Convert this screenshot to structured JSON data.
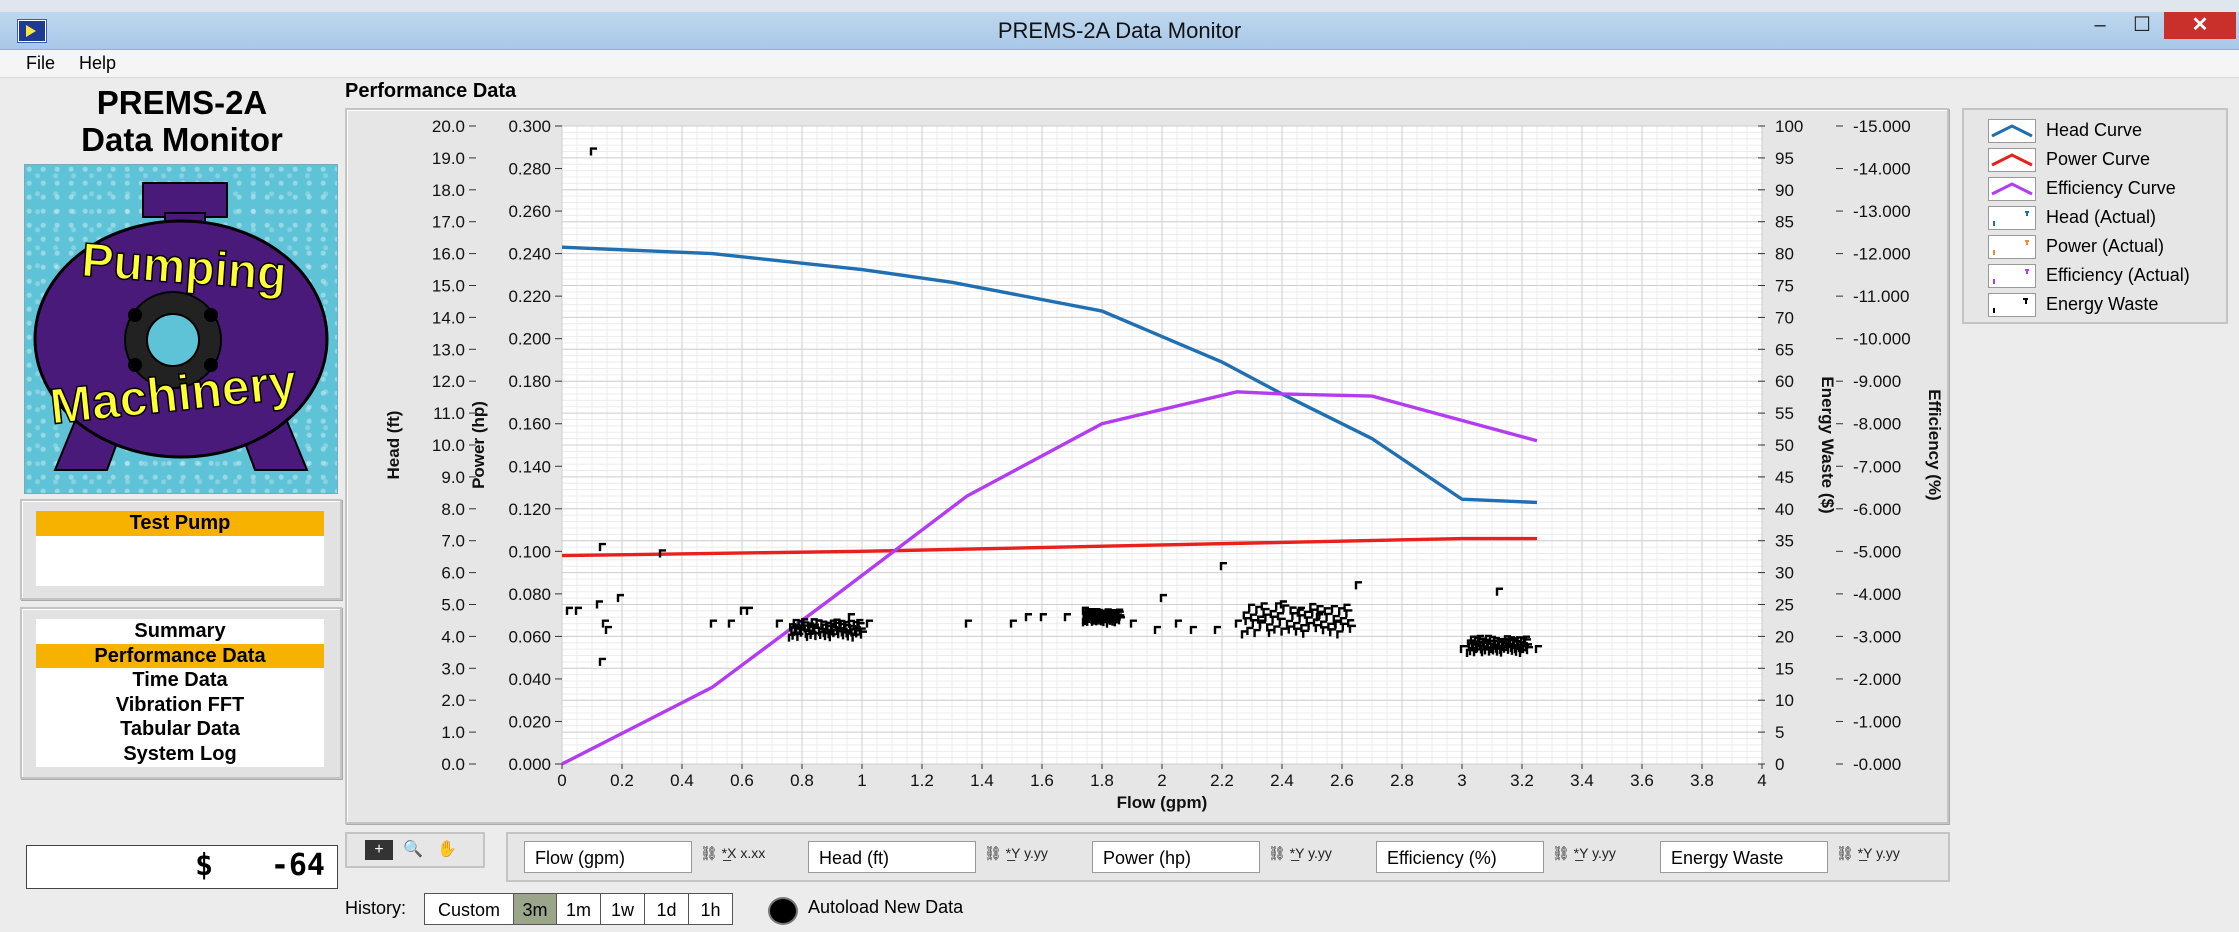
{
  "window": {
    "title": "PREMS-2A Data Monitor",
    "minimize": "–",
    "maximize": "☐",
    "close": "✕",
    "icon": "labview-run-icon"
  },
  "menu": [
    {
      "label": "File"
    },
    {
      "label": "Help"
    }
  ],
  "sidebar": {
    "app_name_line1": "PREMS-2A",
    "app_name_line2": "Data Monitor",
    "logo": {
      "line1": "Pumping",
      "line2": "Machinery",
      "colors": {
        "bg": "#5fc3d7",
        "body": "#4a1a7a",
        "text": "#ffff33"
      }
    },
    "pump_title": "Test Pump",
    "pump_name": "",
    "nav": [
      {
        "label": "Summary",
        "selected": false
      },
      {
        "label": "Performance Data",
        "selected": true
      },
      {
        "label": "Time Data",
        "selected": false
      },
      {
        "label": "Vibration FFT",
        "selected": false
      },
      {
        "label": "Tabular Data",
        "selected": false
      },
      {
        "label": "System Log",
        "selected": false
      }
    ],
    "energy_waste": {
      "currency": "$",
      "value": "-64"
    }
  },
  "main": {
    "title": "Performance Data",
    "axis_fields": [
      {
        "label": "Flow (gpm)",
        "controls": "⛓ *̲X x.xx"
      },
      {
        "label": "Head (ft)",
        "controls": "⛓ *̲Y y.yy"
      },
      {
        "label": "Power (hp)",
        "controls": "⛓ *̲Y y.yy"
      },
      {
        "label": "Efficiency (%)",
        "controls": "⛓ *̲Y y.yy"
      },
      {
        "label": "Energy Waste",
        "controls": "⛓ *̲Y y.yy"
      }
    ],
    "tools": {
      "cursor": "+",
      "zoom": "🔍",
      "pan": "✋"
    },
    "history_label": "History:",
    "history_buttons": [
      {
        "label": "Custom",
        "selected": false
      },
      {
        "label": "3m",
        "selected": true
      },
      {
        "label": "1m",
        "selected": false
      },
      {
        "label": "1w",
        "selected": false
      },
      {
        "label": "1d",
        "selected": false
      },
      {
        "label": "1h",
        "selected": false
      }
    ],
    "autoload_label": "Autoload New Data"
  },
  "chart_data": {
    "type": "line",
    "title": "",
    "xlabel": "Flow (gpm)",
    "xlim": [
      0,
      4
    ],
    "xticks": [
      "0",
      "0.2",
      "0.4",
      "0.6",
      "0.8",
      "1",
      "1.2",
      "1.4",
      "1.6",
      "1.8",
      "2",
      "2.2",
      "2.4",
      "2.6",
      "2.8",
      "3",
      "3.2",
      "3.4",
      "3.6",
      "3.8",
      "4"
    ],
    "grid": true,
    "axes": {
      "head": {
        "label": "Head (ft)",
        "lim": [
          0,
          20
        ],
        "ticks": [
          "0.0",
          "1.0",
          "2.0",
          "3.0",
          "4.0",
          "5.0",
          "6.0",
          "7.0",
          "8.0",
          "9.0",
          "10.0",
          "11.0",
          "12.0",
          "13.0",
          "14.0",
          "15.0",
          "16.0",
          "17.0",
          "18.0",
          "19.0",
          "20.0"
        ]
      },
      "power": {
        "label": "Power (hp)",
        "lim": [
          0,
          0.3
        ],
        "ticks": [
          "0.000",
          "0.020",
          "0.040",
          "0.060",
          "0.080",
          "0.100",
          "0.120",
          "0.140",
          "0.160",
          "0.180",
          "0.200",
          "0.220",
          "0.240",
          "0.260",
          "0.280",
          "0.300"
        ]
      },
      "waste": {
        "label": "Energy Waste ($)",
        "lim": [
          0,
          100
        ],
        "ticks": [
          "0",
          "5",
          "10",
          "15",
          "20",
          "25",
          "30",
          "35",
          "40",
          "45",
          "50",
          "55",
          "60",
          "65",
          "70",
          "75",
          "80",
          "85",
          "90",
          "95",
          "100"
        ]
      },
      "efficiency": {
        "label": "Efficiency (%)",
        "lim": [
          0,
          15
        ],
        "ticks": [
          "-0.000",
          "-1.000",
          "-2.000",
          "-3.000",
          "-4.000",
          "-5.000",
          "-6.000",
          "-7.000",
          "-8.000",
          "-9.000",
          "-10.000",
          "-11.000",
          "-12.000",
          "-13.000",
          "-14.000",
          "-15.000"
        ]
      }
    },
    "legend_position": "right",
    "series": [
      {
        "name": "Head Curve",
        "axis": "head",
        "color": "#1f6fb2",
        "x": [
          0,
          0.5,
          1,
          1.3,
          1.8,
          2,
          2.2,
          2.4,
          2.7,
          3,
          3.25
        ],
        "y": [
          16.2,
          16.0,
          15.5,
          15.1,
          14.2,
          13.4,
          12.6,
          11.6,
          10.2,
          8.3,
          8.2
        ]
      },
      {
        "name": "Power Curve",
        "axis": "power",
        "color": "#e8201e",
        "x": [
          0,
          1,
          2,
          3,
          3.25
        ],
        "y": [
          0.098,
          0.1,
          0.103,
          0.106,
          0.106
        ]
      },
      {
        "name": "Efficiency Curve",
        "axis": "efficiency",
        "color": "#b43cf0",
        "x": [
          0,
          0.5,
          0.9,
          1.35,
          1.8,
          2.25,
          2.4,
          2.7,
          3.25
        ],
        "y": [
          0,
          1.8,
          3.9,
          6.3,
          8.0,
          8.75,
          8.7,
          8.65,
          7.6
        ]
      },
      {
        "name": "Head (Actual)",
        "axis": "head",
        "color": "#1f6fb2",
        "x": [],
        "y": []
      },
      {
        "name": "Power (Actual)",
        "axis": "power",
        "color": "#f08a3c",
        "x": [],
        "y": []
      },
      {
        "name": "Efficiency (Actual)",
        "axis": "efficiency",
        "color": "#b43cf0",
        "x": [],
        "y": []
      },
      {
        "name": "Energy Waste",
        "axis": "waste",
        "color": "#000000",
        "x": [
          0.1,
          0.13,
          0.15,
          0.14,
          0.13,
          0.33,
          0.02,
          0.05,
          0.12,
          0.19,
          0.5,
          0.56,
          0.62,
          0.72,
          0.78,
          0.84,
          0.9,
          0.96,
          1.02,
          1.35,
          1.55,
          1.6,
          1.68,
          1.74,
          1.78,
          1.82,
          1.9,
          1.98,
          2.05,
          2.1,
          2.18,
          2.25,
          2.33,
          2.4,
          2.46,
          2.52,
          2.58,
          2.65,
          3.0,
          3.05,
          3.1,
          3.15,
          3.2,
          3.25,
          3.12,
          2.0,
          1.5,
          0.6,
          2.2
        ],
        "y": [
          96,
          34,
          21,
          22,
          16,
          33,
          24,
          24,
          25,
          26,
          22,
          22,
          24,
          22,
          21,
          21,
          22,
          23,
          22,
          22,
          23,
          23,
          23,
          24,
          23,
          22,
          22,
          21,
          22,
          21,
          21,
          22,
          22,
          25,
          24,
          23,
          22,
          28,
          18,
          18,
          18,
          19,
          18,
          18,
          27,
          26,
          22,
          24,
          31
        ]
      }
    ]
  }
}
